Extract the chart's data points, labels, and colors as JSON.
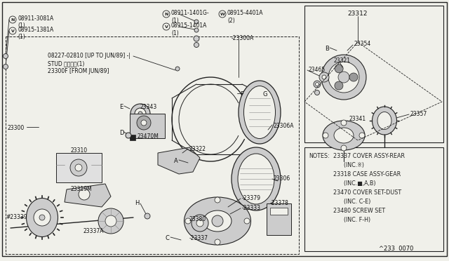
{
  "bg_color": "#f0f0ea",
  "diagram_ref": "^233  0070",
  "notes_lines": [
    "NOTES:23337 COVER ASSY-REAR",
    "      <INC.*(>",
    "      23318 CASE ASSY-GEAR",
    "      <INC. ,A,B>",
    "      23470 COVER SET-DUST",
    "      <INC. C-E>",
    "      23480 SCREW SET",
    "      <INC. F-H>"
  ]
}
